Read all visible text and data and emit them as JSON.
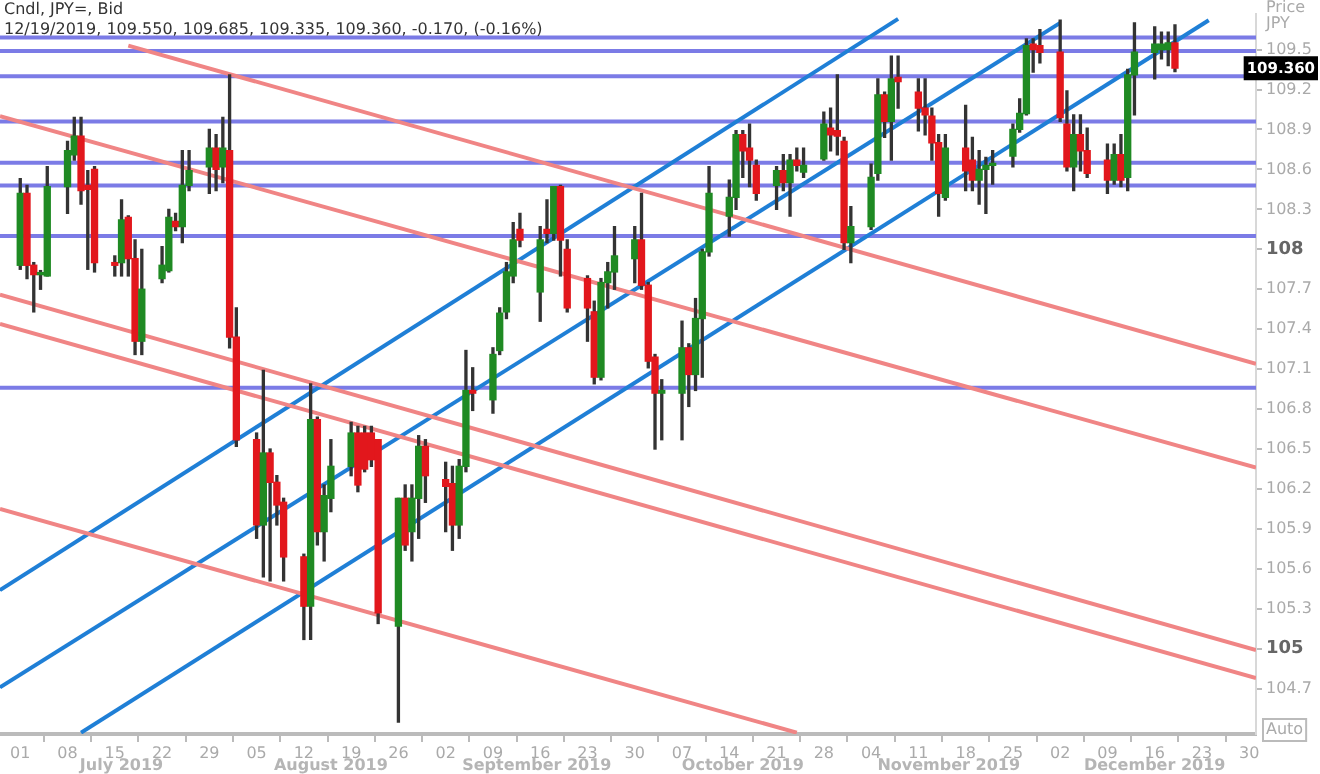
{
  "chart_data": {
    "type": "candlestick",
    "title": "Cndl, JPY=, Bid",
    "subtitle": "12/19/2019, 109.550, 109.685, 109.335, 109.360, -0.170, (-0.16%)",
    "x": [
      "2019-07-01",
      "2019-07-02",
      "2019-07-03",
      "2019-07-04",
      "2019-07-05",
      "2019-07-08",
      "2019-07-09",
      "2019-07-10",
      "2019-07-11",
      "2019-07-12",
      "2019-07-15",
      "2019-07-16",
      "2019-07-17",
      "2019-07-18",
      "2019-07-19",
      "2019-07-22",
      "2019-07-23",
      "2019-07-24",
      "2019-07-25",
      "2019-07-26",
      "2019-07-29",
      "2019-07-30",
      "2019-07-31",
      "2019-08-01",
      "2019-08-02",
      "2019-08-05",
      "2019-08-06",
      "2019-08-07",
      "2019-08-08",
      "2019-08-09",
      "2019-08-12",
      "2019-08-13",
      "2019-08-14",
      "2019-08-15",
      "2019-08-16",
      "2019-08-19",
      "2019-08-20",
      "2019-08-21",
      "2019-08-22",
      "2019-08-23",
      "2019-08-26",
      "2019-08-27",
      "2019-08-28",
      "2019-08-29",
      "2019-08-30",
      "2019-09-02",
      "2019-09-03",
      "2019-09-04",
      "2019-09-05",
      "2019-09-06",
      "2019-09-09",
      "2019-09-10",
      "2019-09-11",
      "2019-09-12",
      "2019-09-13",
      "2019-09-16",
      "2019-09-17",
      "2019-09-18",
      "2019-09-19",
      "2019-09-20",
      "2019-09-23",
      "2019-09-24",
      "2019-09-25",
      "2019-09-26",
      "2019-09-27",
      "2019-09-30",
      "2019-10-01",
      "2019-10-02",
      "2019-10-03",
      "2019-10-04",
      "2019-10-07",
      "2019-10-08",
      "2019-10-09",
      "2019-10-10",
      "2019-10-11",
      "2019-10-14",
      "2019-10-15",
      "2019-10-16",
      "2019-10-17",
      "2019-10-18",
      "2019-10-21",
      "2019-10-22",
      "2019-10-23",
      "2019-10-24",
      "2019-10-25",
      "2019-10-28",
      "2019-10-29",
      "2019-10-30",
      "2019-10-31",
      "2019-11-01",
      "2019-11-04",
      "2019-11-05",
      "2019-11-06",
      "2019-11-07",
      "2019-11-08",
      "2019-11-11",
      "2019-11-12",
      "2019-11-13",
      "2019-11-14",
      "2019-11-15",
      "2019-11-18",
      "2019-11-19",
      "2019-11-20",
      "2019-11-21",
      "2019-11-22",
      "2019-11-25",
      "2019-11-26",
      "2019-11-27",
      "2019-11-28",
      "2019-11-29",
      "2019-12-02",
      "2019-12-03",
      "2019-12-04",
      "2019-12-05",
      "2019-12-06",
      "2019-12-09",
      "2019-12-10",
      "2019-12-11",
      "2019-12-12",
      "2019-12-13",
      "2019-12-16",
      "2019-12-17",
      "2019-12-18",
      "2019-12-19"
    ],
    "ohlc": [
      [
        107.88,
        108.53,
        107.85,
        108.42
      ],
      [
        108.42,
        108.48,
        107.78,
        107.88
      ],
      [
        107.88,
        107.9,
        107.53,
        107.81
      ],
      [
        107.81,
        107.84,
        107.7,
        107.81
      ],
      [
        107.8,
        108.62,
        107.8,
        108.47
      ],
      [
        108.47,
        108.81,
        108.27,
        108.74
      ],
      [
        108.71,
        108.99,
        108.67,
        108.85
      ],
      [
        108.85,
        108.99,
        108.34,
        108.44
      ],
      [
        108.48,
        108.59,
        107.85,
        108.45
      ],
      [
        108.6,
        108.62,
        107.83,
        107.9
      ],
      [
        107.9,
        107.95,
        107.8,
        107.88
      ],
      [
        107.9,
        108.37,
        107.8,
        108.22
      ],
      [
        108.24,
        108.25,
        107.8,
        107.93
      ],
      [
        107.93,
        108.07,
        107.21,
        107.31
      ],
      [
        107.31,
        108.0,
        107.21,
        107.7
      ],
      [
        107.78,
        108.02,
        107.75,
        107.88
      ],
      [
        107.84,
        108.3,
        107.83,
        108.24
      ],
      [
        108.21,
        108.27,
        108.14,
        108.17
      ],
      [
        108.17,
        108.74,
        108.05,
        108.48
      ],
      [
        108.48,
        108.74,
        108.44,
        108.59
      ],
      [
        108.62,
        108.9,
        108.42,
        108.76
      ],
      [
        108.76,
        108.86,
        108.44,
        108.6
      ],
      [
        108.62,
        108.99,
        108.5,
        108.76
      ],
      [
        108.74,
        109.31,
        107.26,
        107.34
      ],
      [
        107.34,
        107.56,
        106.52,
        106.57
      ],
      [
        106.57,
        106.62,
        105.83,
        105.93
      ],
      [
        105.93,
        107.09,
        105.54,
        106.47
      ],
      [
        106.47,
        106.5,
        105.51,
        106.25
      ],
      [
        106.25,
        106.3,
        105.93,
        106.08
      ],
      [
        106.1,
        106.13,
        105.51,
        105.69
      ],
      [
        105.69,
        105.71,
        105.07,
        105.32
      ],
      [
        105.32,
        106.99,
        105.07,
        106.72
      ],
      [
        106.72,
        106.74,
        105.78,
        105.88
      ],
      [
        105.88,
        106.23,
        105.66,
        106.15
      ],
      [
        106.13,
        106.57,
        106.03,
        106.37
      ],
      [
        106.37,
        106.7,
        106.3,
        106.62
      ],
      [
        106.62,
        106.67,
        106.18,
        106.23
      ],
      [
        106.62,
        106.67,
        106.33,
        106.35
      ],
      [
        106.62,
        106.67,
        106.37,
        106.42
      ],
      [
        106.57,
        106.57,
        105.19,
        105.27
      ],
      [
        105.17,
        106.13,
        104.45,
        106.13
      ],
      [
        106.13,
        106.23,
        105.74,
        105.78
      ],
      [
        105.88,
        106.23,
        105.66,
        106.13
      ],
      [
        106.13,
        106.6,
        105.83,
        106.52
      ],
      [
        106.52,
        106.57,
        106.1,
        106.3
      ],
      [
        106.27,
        106.4,
        105.88,
        106.22
      ],
      [
        106.24,
        106.37,
        105.74,
        105.93
      ],
      [
        105.93,
        106.42,
        105.83,
        106.37
      ],
      [
        106.37,
        107.24,
        106.33,
        106.94
      ],
      [
        106.94,
        107.11,
        106.79,
        106.92
      ],
      [
        106.87,
        107.26,
        106.77,
        107.21
      ],
      [
        107.24,
        107.56,
        107.21,
        107.52
      ],
      [
        107.53,
        107.9,
        107.48,
        107.83
      ],
      [
        107.8,
        108.2,
        107.75,
        108.07
      ],
      [
        108.15,
        108.27,
        108.02,
        108.07
      ],
      [
        107.68,
        108.17,
        107.46,
        108.07
      ],
      [
        108.15,
        108.37,
        108.05,
        108.12
      ],
      [
        108.12,
        108.47,
        108.07,
        108.47
      ],
      [
        108.47,
        108.48,
        107.8,
        108.07
      ],
      [
        108.0,
        108.07,
        107.53,
        107.56
      ],
      [
        107.78,
        107.8,
        107.31,
        107.56
      ],
      [
        107.53,
        107.61,
        106.99,
        107.04
      ],
      [
        107.04,
        107.78,
        107.02,
        107.75
      ],
      [
        107.75,
        107.9,
        107.56,
        107.83
      ],
      [
        107.83,
        108.17,
        107.7,
        107.95
      ],
      [
        107.93,
        108.17,
        107.75,
        108.07
      ],
      [
        108.07,
        108.42,
        107.7,
        107.73
      ],
      [
        107.73,
        107.75,
        107.11,
        107.16
      ],
      [
        107.19,
        107.21,
        106.5,
        106.92
      ],
      [
        106.92,
        107.02,
        106.57,
        106.94
      ],
      [
        106.92,
        107.46,
        106.57,
        107.26
      ],
      [
        107.26,
        107.29,
        106.82,
        107.06
      ],
      [
        107.06,
        107.63,
        106.94,
        107.48
      ],
      [
        107.48,
        108.0,
        107.04,
        107.98
      ],
      [
        107.98,
        108.62,
        107.95,
        108.42
      ],
      [
        108.25,
        108.52,
        108.1,
        108.39
      ],
      [
        108.39,
        108.89,
        108.3,
        108.86
      ],
      [
        108.86,
        108.89,
        108.54,
        108.74
      ],
      [
        108.76,
        108.94,
        108.47,
        108.67
      ],
      [
        108.63,
        108.67,
        108.37,
        108.42
      ],
      [
        108.48,
        108.62,
        108.3,
        108.59
      ],
      [
        108.59,
        108.71,
        108.44,
        108.5
      ],
      [
        108.5,
        108.71,
        108.25,
        108.67
      ],
      [
        108.67,
        108.76,
        108.59,
        108.63
      ],
      [
        108.58,
        108.76,
        108.54,
        108.63
      ],
      [
        108.68,
        109.03,
        108.67,
        108.94
      ],
      [
        108.91,
        109.06,
        108.74,
        108.86
      ],
      [
        108.89,
        109.31,
        108.71,
        108.85
      ],
      [
        108.81,
        108.84,
        108.0,
        108.05
      ],
      [
        108.05,
        108.32,
        107.9,
        108.17
      ],
      [
        108.17,
        108.64,
        108.15,
        108.54
      ],
      [
        108.57,
        109.28,
        108.52,
        109.16
      ],
      [
        109.16,
        109.18,
        108.84,
        108.96
      ],
      [
        108.96,
        109.45,
        108.67,
        109.28
      ],
      [
        109.29,
        109.45,
        109.06,
        109.26
      ],
      [
        109.18,
        109.28,
        108.89,
        109.06
      ],
      [
        109.06,
        109.28,
        108.86,
        109.01
      ],
      [
        109.0,
        109.06,
        108.67,
        108.8
      ],
      [
        108.8,
        108.86,
        108.25,
        108.42
      ],
      [
        108.39,
        108.86,
        108.37,
        108.76
      ],
      [
        108.76,
        109.08,
        108.44,
        108.59
      ],
      [
        108.67,
        108.84,
        108.44,
        108.52
      ],
      [
        108.52,
        108.74,
        108.34,
        108.6
      ],
      [
        108.6,
        108.69,
        108.27,
        108.63
      ],
      [
        108.63,
        108.74,
        108.49,
        108.63
      ],
      [
        108.7,
        108.94,
        108.62,
        108.9
      ],
      [
        108.9,
        109.13,
        108.88,
        109.02
      ],
      [
        109.02,
        109.58,
        109.01,
        109.53
      ],
      [
        109.54,
        109.58,
        109.33,
        109.5
      ],
      [
        109.53,
        109.65,
        109.4,
        109.48
      ],
      [
        109.48,
        109.72,
        108.96,
        108.99
      ],
      [
        108.94,
        109.19,
        108.59,
        108.62
      ],
      [
        108.62,
        109.01,
        108.44,
        108.86
      ],
      [
        108.86,
        109.01,
        108.59,
        108.74
      ],
      [
        108.74,
        108.91,
        108.54,
        108.57
      ],
      [
        108.67,
        108.79,
        108.42,
        108.52
      ],
      [
        108.52,
        108.79,
        108.49,
        108.71
      ],
      [
        108.71,
        108.86,
        108.47,
        108.52
      ],
      [
        108.54,
        109.35,
        108.44,
        109.31
      ],
      [
        109.31,
        109.7,
        109.01,
        109.48
      ],
      [
        109.48,
        109.67,
        109.28,
        109.54
      ],
      [
        109.5,
        109.63,
        109.43,
        109.54
      ],
      [
        109.5,
        109.63,
        109.38,
        109.55
      ],
      [
        109.55,
        109.685,
        109.335,
        109.36
      ]
    ],
    "series": [
      {
        "type": "line",
        "color": "#f08585",
        "x": [
          "2019-07-17",
          "2019-12-31"
        ],
        "values": [
          109.53,
          107.14
        ]
      },
      {
        "type": "line",
        "color": "#f08585",
        "x": [
          "2019-06-28",
          "2019-12-31"
        ],
        "values": [
          109.0,
          106.36
        ]
      },
      {
        "type": "line",
        "color": "#f08585",
        "x": [
          "2019-06-28",
          "2019-12-31"
        ],
        "values": [
          107.66,
          104.99
        ]
      },
      {
        "type": "line",
        "color": "#f08585",
        "x": [
          "2019-06-28",
          "2019-12-31"
        ],
        "values": [
          107.44,
          104.78
        ]
      },
      {
        "type": "line",
        "color": "#f08585",
        "x": [
          "2019-06-28",
          "2019-10-24"
        ],
        "values": [
          106.05,
          104.37
        ]
      },
      {
        "type": "line",
        "color": "#1f7fd6",
        "x": [
          "2019-06-28",
          "2019-11-08"
        ],
        "values": [
          105.44,
          109.73
        ]
      },
      {
        "type": "line",
        "color": "#1f7fd6",
        "x": [
          "2019-06-28",
          "2019-12-02"
        ],
        "values": [
          104.71,
          109.7
        ]
      },
      {
        "type": "line",
        "color": "#1f7fd6",
        "x": [
          "2019-07-10",
          "2019-12-24"
        ],
        "values": [
          104.37,
          109.72
        ]
      }
    ],
    "ref_lines": [
      {
        "axis": "y",
        "value": 109.59,
        "color": "#7b7be6"
      },
      {
        "axis": "y",
        "value": 109.49,
        "color": "#7b7be6"
      },
      {
        "axis": "y",
        "value": 109.3,
        "color": "#7b7be6"
      },
      {
        "axis": "y",
        "value": 108.96,
        "color": "#7b7be6"
      },
      {
        "axis": "y",
        "value": 108.65,
        "color": "#7b7be6"
      },
      {
        "axis": "y",
        "value": 108.48,
        "color": "#7b7be6"
      },
      {
        "axis": "y",
        "value": 108.1,
        "color": "#7b7be6"
      },
      {
        "axis": "y",
        "value": 106.96,
        "color": "#7b7be6"
      }
    ],
    "xlim": [
      "2019-06-28",
      "2019-12-31"
    ],
    "xticks": [
      {
        "value": "2019-07-01",
        "label": "01"
      },
      {
        "value": "2019-07-08",
        "label": "08"
      },
      {
        "value": "2019-07-15",
        "label": "15"
      },
      {
        "value": "2019-07-22",
        "label": "22"
      },
      {
        "value": "2019-07-29",
        "label": "29"
      },
      {
        "value": "2019-08-05",
        "label": "05"
      },
      {
        "value": "2019-08-12",
        "label": "12"
      },
      {
        "value": "2019-08-19",
        "label": "19"
      },
      {
        "value": "2019-08-26",
        "label": "26"
      },
      {
        "value": "2019-09-02",
        "label": "02"
      },
      {
        "value": "2019-09-09",
        "label": "09"
      },
      {
        "value": "2019-09-16",
        "label": "16"
      },
      {
        "value": "2019-09-23",
        "label": "23"
      },
      {
        "value": "2019-09-30",
        "label": "30"
      },
      {
        "value": "2019-10-07",
        "label": "07"
      },
      {
        "value": "2019-10-14",
        "label": "14"
      },
      {
        "value": "2019-10-21",
        "label": "21"
      },
      {
        "value": "2019-10-28",
        "label": "28"
      },
      {
        "value": "2019-11-04",
        "label": "04"
      },
      {
        "value": "2019-11-11",
        "label": "11"
      },
      {
        "value": "2019-11-18",
        "label": "18"
      },
      {
        "value": "2019-11-25",
        "label": "25"
      },
      {
        "value": "2019-12-02",
        "label": "02"
      },
      {
        "value": "2019-12-09",
        "label": "09"
      },
      {
        "value": "2019-12-16",
        "label": "16"
      },
      {
        "value": "2019-12-23",
        "label": "23"
      },
      {
        "value": "2019-12-30",
        "label": "30"
      }
    ],
    "ylim": [
      104.36,
      109.77
    ],
    "yticks": [
      104.7,
      105,
      105.3,
      105.6,
      105.9,
      106.2,
      106.5,
      106.8,
      107.1,
      107.4,
      107.7,
      108,
      108.3,
      108.6,
      108.9,
      109.2,
      109.5
    ],
    "annotations": [
      "Price",
      "JPY",
      "Auto",
      "July 2019",
      "August 2019",
      "September 2019",
      "October 2019",
      "November 2019",
      "December 2019",
      "109.360"
    ]
  }
}
